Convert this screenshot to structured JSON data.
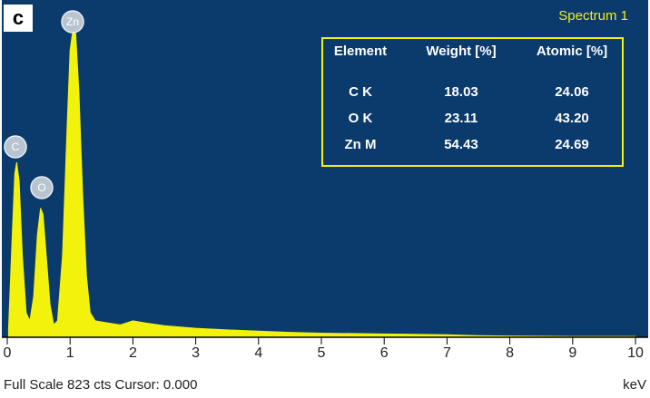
{
  "chart_data": {
    "type": "area",
    "panel_label": "c",
    "title": "Spectrum 1",
    "xlabel": "keV",
    "footer": "Full Scale 823 cts Cursor: 0.000",
    "xlim": [
      0,
      10
    ],
    "xticks": [
      0,
      1,
      2,
      3,
      4,
      5,
      6,
      7,
      8,
      9,
      10
    ],
    "ylim": [
      0,
      823
    ],
    "background": "#0b3a6c",
    "color": "#f2f20c",
    "peak_labels": [
      "Zn",
      "C",
      "O"
    ],
    "x": [
      0.02,
      0.08,
      0.12,
      0.15,
      0.19,
      0.24,
      0.3,
      0.36,
      0.42,
      0.48,
      0.53,
      0.57,
      0.62,
      0.68,
      0.74,
      0.8,
      0.88,
      0.95,
      1.0,
      1.05,
      1.09,
      1.14,
      1.2,
      1.26,
      1.32,
      1.4,
      1.6,
      1.8,
      2.0,
      2.2,
      2.5,
      3,
      3.5,
      4,
      4.5,
      5,
      5.5,
      6,
      6.5,
      7,
      7.5,
      8,
      9,
      10
    ],
    "values": [
      20,
      250,
      400,
      427,
      380,
      200,
      60,
      40,
      100,
      250,
      315,
      300,
      200,
      80,
      30,
      40,
      200,
      500,
      700,
      756,
      740,
      600,
      350,
      150,
      60,
      40,
      35,
      30,
      40,
      35,
      28,
      22,
      18,
      15,
      12,
      10,
      9,
      8,
      7,
      6,
      4,
      3,
      2,
      2
    ],
    "table": {
      "columns": [
        "Element",
        "Weight [%]",
        "Atomic [%]"
      ],
      "rows": [
        [
          "C K",
          "18.03",
          "24.06"
        ],
        [
          "O K",
          "23.11",
          "43.20"
        ],
        [
          "Zn M",
          "54.43",
          "24.69"
        ]
      ]
    }
  }
}
